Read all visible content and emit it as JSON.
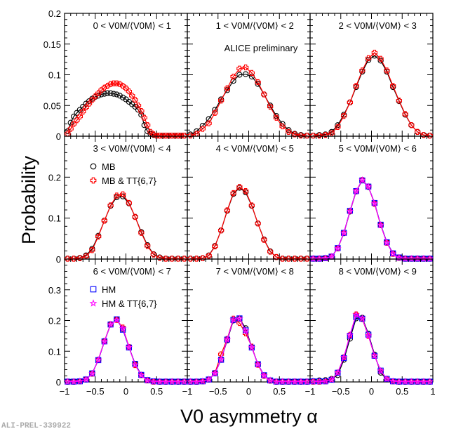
{
  "chart_data": {
    "type": "scatter",
    "title": "",
    "xlabel": "V0 asymmetry α",
    "ylabel": "Probability",
    "watermark": "ALI-PREL-339922",
    "annotation": "ALICE preliminary",
    "xlim": [
      -1,
      1
    ],
    "xticks": [
      "−1",
      "−0.5",
      "0",
      "0.5"
    ],
    "xticks_last": "1",
    "rows": [
      {
        "ylim": [
          0,
          0.2
        ],
        "yticks": [
          0,
          0.05,
          0.1,
          0.15,
          0.2
        ],
        "ytick_labels": [
          "0",
          "0.05",
          "0.1",
          "0.15",
          "0.2"
        ]
      },
      {
        "ylim": [
          0,
          0.3
        ],
        "yticks": [
          0,
          0.1,
          0.2
        ],
        "ytick_labels": [
          "0",
          "0.1",
          "0.2"
        ]
      },
      {
        "ylim": [
          0,
          0.4
        ],
        "yticks": [
          0,
          0.1,
          0.2,
          0.3
        ],
        "ytick_labels": [
          "0",
          "0.1",
          "0.2",
          "0.3"
        ]
      }
    ],
    "legends": [
      {
        "panel": 3,
        "entries": [
          {
            "name": "MB",
            "marker": "circle",
            "color": "#000000"
          },
          {
            "name": "MB & TT{6,7}",
            "marker": "cross",
            "color": "#ff0000"
          }
        ]
      },
      {
        "panel": 6,
        "entries": [
          {
            "name": "HM",
            "marker": "square",
            "color": "#0000ff"
          },
          {
            "name": "HM & TT{6,7}",
            "marker": "star",
            "color": "#ff00ff"
          }
        ]
      }
    ],
    "x": [
      -0.95,
      -0.85,
      -0.75,
      -0.65,
      -0.55,
      -0.45,
      -0.35,
      -0.25,
      -0.15,
      -0.05,
      0.05,
      0.15,
      0.25,
      0.35,
      0.45,
      0.55,
      0.65,
      0.75,
      0.85,
      0.95
    ],
    "x_fine": [
      -0.95,
      -0.9,
      -0.85,
      -0.8,
      -0.75,
      -0.7,
      -0.65,
      -0.6,
      -0.55,
      -0.5,
      -0.45,
      -0.4,
      -0.35,
      -0.3,
      -0.25,
      -0.2,
      -0.15,
      -0.1,
      -0.05,
      0,
      0.05,
      0.1,
      0.15,
      0.2,
      0.25,
      0.3,
      0.35,
      0.4,
      0.45,
      0.5,
      0.55,
      0.6,
      0.65,
      0.7,
      0.75,
      0.8,
      0.85,
      0.9,
      0.95
    ],
    "panels": [
      {
        "label": "0 < V0M/⟨V0M⟩ < 1",
        "series": [
          {
            "name": "MB",
            "color": "#000000",
            "marker": "circle",
            "fine": true,
            "values": [
              0.008,
              0.022,
              0.032,
              0.038,
              0.043,
              0.048,
              0.053,
              0.057,
              0.061,
              0.064,
              0.066,
              0.068,
              0.069,
              0.07,
              0.07,
              0.069,
              0.068,
              0.066,
              0.063,
              0.06,
              0.056,
              0.052,
              0.048,
              0.043,
              0.035,
              0.018,
              0.008,
              0.004,
              0.002,
              0.001,
              0.001,
              0.001,
              0.001,
              0.001,
              0.001,
              0.001,
              0.001,
              0.001,
              0.001
            ]
          },
          {
            "name": "MB & TT{6,7}",
            "color": "#ff0000",
            "marker": "cross",
            "fine": true,
            "values": [
              0.004,
              0.012,
              0.02,
              0.026,
              0.032,
              0.04,
              0.047,
              0.053,
              0.059,
              0.065,
              0.07,
              0.075,
              0.079,
              0.082,
              0.085,
              0.086,
              0.086,
              0.085,
              0.082,
              0.078,
              0.073,
              0.066,
              0.059,
              0.05,
              0.041,
              0.03,
              0.018,
              0.007,
              0.003,
              0.001,
              0.001,
              0.001,
              0.001,
              0.001,
              0.001,
              0.001,
              0.001,
              0.001,
              0.001
            ]
          }
        ]
      },
      {
        "label": "1 < V0M/⟨V0M⟩ < 2",
        "series": [
          {
            "name": "MB",
            "color": "#000000",
            "marker": "circle",
            "values": [
              0.003,
              0.008,
              0.017,
              0.028,
              0.043,
              0.06,
              0.075,
              0.09,
              0.1,
              0.101,
              0.097,
              0.085,
              0.068,
              0.05,
              0.033,
              0.02,
              0.01,
              0.004,
              0.002,
              0.001
            ]
          },
          {
            "name": "MB & TT{6,7}",
            "color": "#ff0000",
            "marker": "cross",
            "values": [
              0.001,
              0.004,
              0.012,
              0.021,
              0.038,
              0.058,
              0.078,
              0.097,
              0.11,
              0.112,
              0.103,
              0.088,
              0.068,
              0.048,
              0.03,
              0.016,
              0.007,
              0.003,
              0.001,
              0.001
            ]
          }
        ]
      },
      {
        "label": "2 < V0M/⟨V0M⟩ < 3",
        "series": [
          {
            "name": "MB",
            "color": "#000000",
            "marker": "circle",
            "values": [
              0.001,
              0.002,
              0.003,
              0.007,
              0.018,
              0.035,
              0.055,
              0.08,
              0.105,
              0.124,
              0.131,
              0.123,
              0.105,
              0.08,
              0.057,
              0.035,
              0.018,
              0.007,
              0.002,
              0.001
            ]
          },
          {
            "name": "MB & TT{6,7}",
            "color": "#ff0000",
            "marker": "cross",
            "values": [
              0.001,
              0.001,
              0.002,
              0.005,
              0.015,
              0.033,
              0.055,
              0.082,
              0.107,
              0.127,
              0.136,
              0.126,
              0.107,
              0.082,
              0.058,
              0.036,
              0.018,
              0.007,
              0.002,
              0.001
            ]
          }
        ]
      },
      {
        "label": "3 < V0M/⟨V0M⟩ < 4",
        "series": [
          {
            "name": "MB",
            "color": "#000000",
            "marker": "circle",
            "values": [
              0.001,
              0.001,
              0.003,
              0.009,
              0.025,
              0.057,
              0.094,
              0.13,
              0.151,
              0.153,
              0.136,
              0.103,
              0.066,
              0.034,
              0.012,
              0.004,
              0.001,
              0.001,
              0.001,
              0.001
            ]
          },
          {
            "name": "MB & TT{6,7}",
            "color": "#ff0000",
            "marker": "cross",
            "values": [
              0.001,
              0.001,
              0.002,
              0.007,
              0.022,
              0.055,
              0.094,
              0.131,
              0.155,
              0.158,
              0.137,
              0.103,
              0.064,
              0.032,
              0.011,
              0.003,
              0.001,
              0.001,
              0.001,
              0.001
            ]
          }
        ]
      },
      {
        "label": "4 < V0M/⟨V0M⟩ < 5",
        "series": [
          {
            "name": "MB",
            "color": "#000000",
            "marker": "circle",
            "values": [
              0.001,
              0.001,
              0.002,
              0.009,
              0.032,
              0.07,
              0.118,
              0.159,
              0.174,
              0.163,
              0.13,
              0.087,
              0.048,
              0.019,
              0.005,
              0.001,
              0.001,
              0.001,
              0.001,
              0.001
            ]
          },
          {
            "name": "MB & TT{6,7}",
            "color": "#ff0000",
            "marker": "cross",
            "values": [
              0.001,
              0.001,
              0.002,
              0.008,
              0.031,
              0.07,
              0.119,
              0.161,
              0.176,
              0.166,
              0.131,
              0.087,
              0.047,
              0.018,
              0.005,
              0.001,
              0.001,
              0.001,
              0.001,
              0.001
            ]
          }
        ]
      },
      {
        "label": "5 < V0M/⟨V0M⟩ < 6",
        "series": [
          {
            "name": "MB",
            "color": "#000000",
            "marker": "circle",
            "values": [
              0.001,
              0.001,
              0.002,
              0.006,
              0.026,
              0.063,
              0.116,
              0.165,
              0.192,
              0.176,
              0.136,
              0.084,
              0.041,
              0.014,
              0.004,
              0.001,
              0.001,
              0.001,
              0.001,
              0.001
            ]
          },
          {
            "name": "MB & TT{6,7}",
            "color": "#ff0000",
            "marker": "cross",
            "values": [
              0.001,
              0.001,
              0.002,
              0.006,
              0.026,
              0.064,
              0.117,
              0.166,
              0.193,
              0.177,
              0.135,
              0.083,
              0.04,
              0.013,
              0.003,
              0.001,
              0.001,
              0.001,
              0.001,
              0.001
            ]
          },
          {
            "name": "HM",
            "color": "#0000ff",
            "marker": "square",
            "values": [
              0.001,
              0.001,
              0.002,
              0.006,
              0.027,
              0.064,
              0.118,
              0.166,
              0.192,
              0.177,
              0.137,
              0.084,
              0.041,
              0.014,
              0.004,
              0.001,
              0.001,
              0.001,
              0.001,
              0.001
            ]
          },
          {
            "name": "HM & TT{6,7}",
            "color": "#ff00ff",
            "marker": "star",
            "values": [
              0.001,
              0.001,
              0.002,
              0.006,
              0.026,
              0.064,
              0.117,
              0.166,
              0.193,
              0.177,
              0.136,
              0.083,
              0.04,
              0.013,
              0.003,
              0.001,
              0.001,
              0.001,
              0.001,
              0.001
            ]
          }
        ]
      },
      {
        "label": "6 < V0M/⟨V0M⟩ < 7",
        "series": [
          {
            "name": "MB",
            "color": "#000000",
            "marker": "circle",
            "values": [
              0.001,
              0.001,
              0.002,
              0.008,
              0.028,
              0.071,
              0.132,
              0.187,
              0.203,
              0.172,
              0.113,
              0.058,
              0.023,
              0.006,
              0.002,
              0.001,
              0.001,
              0.001,
              0.001,
              0.001
            ]
          },
          {
            "name": "MB & TT{6,7}",
            "color": "#ff0000",
            "marker": "cross",
            "values": [
              0.001,
              0.001,
              0.002,
              0.008,
              0.027,
              0.072,
              0.133,
              0.188,
              0.202,
              0.177,
              0.114,
              0.055,
              0.022,
              0.005,
              0.001,
              0.001,
              0.001,
              0.001,
              0.001,
              0.001
            ]
          },
          {
            "name": "HM",
            "color": "#0000ff",
            "marker": "square",
            "values": [
              0.001,
              0.001,
              0.002,
              0.008,
              0.028,
              0.071,
              0.132,
              0.187,
              0.204,
              0.17,
              0.112,
              0.059,
              0.023,
              0.006,
              0.002,
              0.001,
              0.001,
              0.001,
              0.001,
              0.001
            ]
          },
          {
            "name": "HM & TT{6,7}",
            "color": "#ff00ff",
            "marker": "star",
            "values": [
              0.001,
              0.001,
              0.002,
              0.008,
              0.027,
              0.072,
              0.132,
              0.187,
              0.202,
              0.174,
              0.113,
              0.056,
              0.022,
              0.005,
              0.001,
              0.001,
              0.001,
              0.001,
              0.001,
              0.001
            ]
          }
        ]
      },
      {
        "label": "7 < V0M/⟨V0M⟩ < 8",
        "series": [
          {
            "name": "MB",
            "color": "#000000",
            "marker": "circle",
            "values": [
              0.001,
              0.001,
              0.002,
              0.008,
              0.028,
              0.073,
              0.135,
              0.2,
              0.206,
              0.175,
              0.113,
              0.057,
              0.021,
              0.005,
              0.001,
              0.001,
              0.001,
              0.001,
              0.001,
              0.001
            ]
          },
          {
            "name": "MB & TT{6,7}",
            "color": "#ff0000",
            "marker": "cross",
            "values": [
              0.001,
              0.001,
              0.002,
              0.008,
              0.029,
              0.09,
              0.14,
              0.206,
              0.192,
              0.158,
              0.115,
              0.056,
              0.02,
              0.004,
              0.001,
              0.001,
              0.001,
              0.001,
              0.001,
              0.001
            ]
          },
          {
            "name": "HM",
            "color": "#0000ff",
            "marker": "square",
            "values": [
              0.001,
              0.001,
              0.002,
              0.008,
              0.028,
              0.072,
              0.138,
              0.202,
              0.207,
              0.168,
              0.112,
              0.058,
              0.022,
              0.005,
              0.001,
              0.001,
              0.001,
              0.001,
              0.001,
              0.001
            ]
          },
          {
            "name": "HM & TT{6,7}",
            "color": "#ff00ff",
            "marker": "star",
            "values": [
              0.001,
              0.001,
              0.002,
              0.008,
              0.028,
              0.073,
              0.138,
              0.203,
              0.206,
              0.167,
              0.112,
              0.057,
              0.021,
              0.005,
              0.001,
              0.001,
              0.001,
              0.001,
              0.001,
              0.001
            ]
          }
        ]
      },
      {
        "label": "8 < V0M/⟨V0M⟩ < 9",
        "series": [
          {
            "name": "MB",
            "color": "#000000",
            "marker": "circle",
            "values": [
              0.003,
              0.005,
              0.006,
              0.01,
              0.022,
              0.072,
              0.141,
              0.207,
              0.209,
              0.157,
              0.089,
              0.03,
              0.008,
              0.002,
              0.001,
              0.001,
              0.001,
              0.001,
              0.001,
              0.001
            ]
          },
          {
            "name": "MB & TT{6,7}",
            "color": "#ff0000",
            "marker": "cross",
            "values": [
              0.001,
              0.001,
              0.002,
              0.008,
              0.03,
              0.08,
              0.153,
              0.22,
              0.205,
              0.15,
              0.085,
              0.036,
              0.01,
              0.002,
              0.001,
              0.001,
              0.001,
              0.001,
              0.001,
              0.001
            ]
          },
          {
            "name": "HM",
            "color": "#0000ff",
            "marker": "square",
            "values": [
              0.002,
              0.002,
              0.002,
              0.007,
              0.03,
              0.078,
              0.15,
              0.212,
              0.206,
              0.154,
              0.085,
              0.037,
              0.01,
              0.002,
              0.001,
              0.001,
              0.001,
              0.001,
              0.001,
              0.001
            ]
          },
          {
            "name": "HM & TT{6,7}",
            "color": "#ff00ff",
            "marker": "star",
            "values": [
              0.001,
              0.001,
              0.002,
              0.007,
              0.03,
              0.08,
              0.153,
              0.219,
              0.207,
              0.151,
              0.085,
              0.036,
              0.01,
              0.002,
              0.001,
              0.001,
              0.001,
              0.001,
              0.001,
              0.001
            ]
          }
        ]
      }
    ]
  }
}
